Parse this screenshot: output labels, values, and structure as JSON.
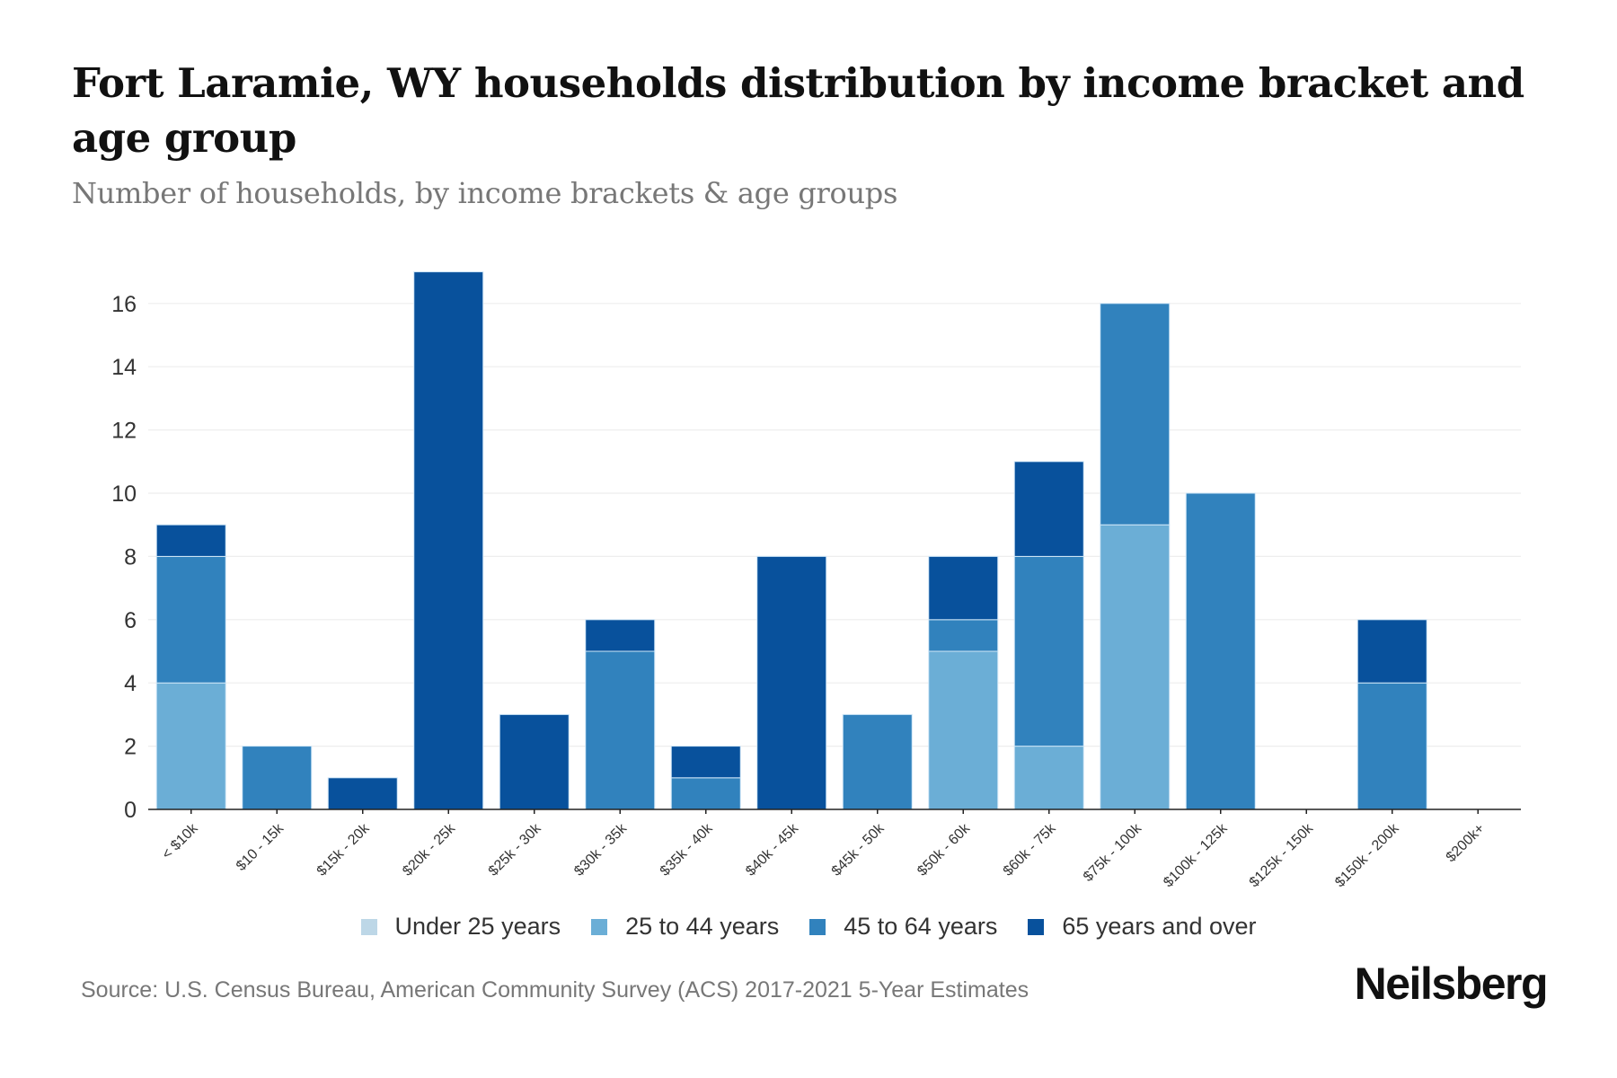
{
  "header": {
    "title": "Fort Laramie, WY households distribution by income bracket and age group",
    "subtitle": "Number of households, by income brackets & age groups"
  },
  "legend": [
    {
      "label": "Under 25 years",
      "color": "#bdd7e7"
    },
    {
      "label": "25 to 44 years",
      "color": "#6baed6"
    },
    {
      "label": "45 to 64 years",
      "color": "#3182bd"
    },
    {
      "label": "65 years and over",
      "color": "#08519c"
    }
  ],
  "footer": {
    "source": "Source: U.S. Census Bureau, American Community Survey (ACS) 2017-2021 5-Year Estimates",
    "brand": "Neilsberg"
  },
  "chart_data": {
    "type": "bar",
    "stacked": true,
    "title": "Fort Laramie, WY households distribution by income bracket and age group",
    "subtitle": "Number of households, by income brackets & age groups",
    "xlabel": "",
    "ylabel": "",
    "ylim": [
      0,
      17
    ],
    "yticks": [
      0,
      2,
      4,
      6,
      8,
      10,
      12,
      14,
      16
    ],
    "grid": true,
    "legend_position": "bottom",
    "categories": [
      "< $10k",
      "$10 - 15k",
      "$15k - 20k",
      "$20k - 25k",
      "$25k - 30k",
      "$30k - 35k",
      "$35k - 40k",
      "$40k - 45k",
      "$45k - 50k",
      "$50k - 60k",
      "$60k - 75k",
      "$75k - 100k",
      "$100k - 125k",
      "$125k - 150k",
      "$150k - 200k",
      "$200k+"
    ],
    "series": [
      {
        "name": "Under 25 years",
        "color": "#bdd7e7",
        "values": [
          0,
          0,
          0,
          0,
          0,
          0,
          0,
          0,
          0,
          0,
          0,
          0,
          0,
          0,
          0,
          0
        ]
      },
      {
        "name": "25 to 44 years",
        "color": "#6baed6",
        "values": [
          4,
          0,
          0,
          0,
          0,
          0,
          0,
          0,
          0,
          5,
          2,
          9,
          0,
          0,
          0,
          0
        ]
      },
      {
        "name": "45 to 64 years",
        "color": "#3182bd",
        "values": [
          4,
          2,
          0,
          0,
          0,
          5,
          1,
          0,
          3,
          1,
          6,
          7,
          10,
          0,
          4,
          0
        ]
      },
      {
        "name": "65 years and over",
        "color": "#08519c",
        "values": [
          1,
          0,
          1,
          17,
          3,
          1,
          1,
          8,
          0,
          2,
          3,
          0,
          0,
          0,
          2,
          0
        ]
      }
    ],
    "source": "Source: U.S. Census Bureau, American Community Survey (ACS) 2017-2021 5-Year Estimates"
  }
}
